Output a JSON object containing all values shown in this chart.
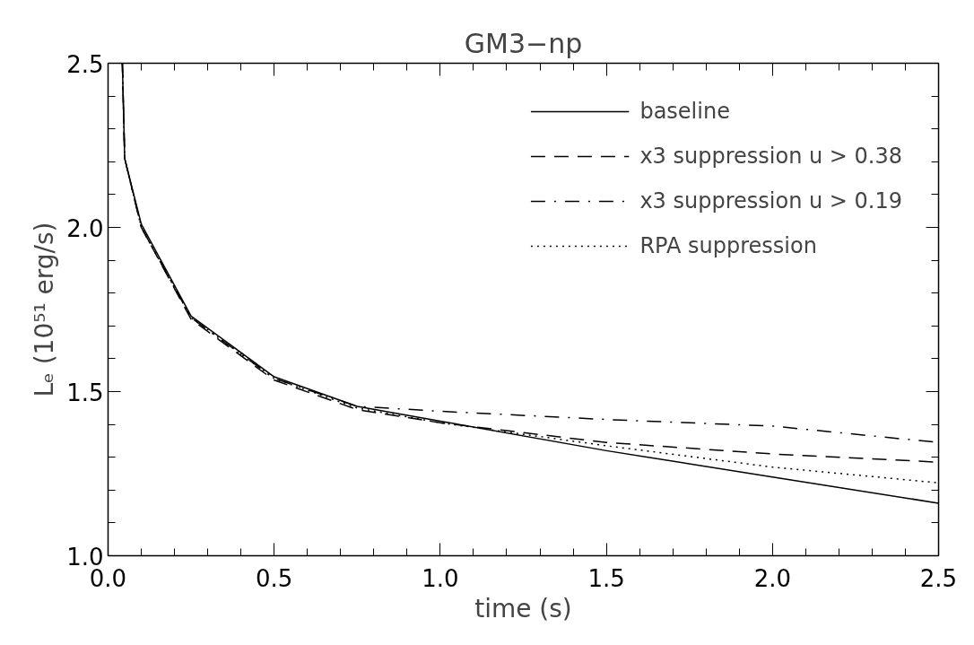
{
  "chart_data": {
    "type": "line",
    "title": "GM3−np",
    "xlabel": "time (s)",
    "ylabel": "Lₑ (10⁵¹ erg/s)",
    "xlim": [
      0,
      2.5
    ],
    "ylim": [
      1.0,
      2.5
    ],
    "xticks": [
      {
        "value": 0,
        "label": "0.0"
      },
      {
        "value": 0.1,
        "label": null
      },
      {
        "value": 0.2,
        "label": null
      },
      {
        "value": 0.3,
        "label": null
      },
      {
        "value": 0.4,
        "label": null
      },
      {
        "value": 0.5,
        "label": "0.5"
      },
      {
        "value": 0.6,
        "label": null
      },
      {
        "value": 0.7,
        "label": null
      },
      {
        "value": 0.8,
        "label": null
      },
      {
        "value": 0.9,
        "label": null
      },
      {
        "value": 1.0,
        "label": "1.0"
      },
      {
        "value": 1.1,
        "label": null
      },
      {
        "value": 1.2,
        "label": null
      },
      {
        "value": 1.3,
        "label": null
      },
      {
        "value": 1.4,
        "label": null
      },
      {
        "value": 1.5,
        "label": "1.5"
      },
      {
        "value": 1.6,
        "label": null
      },
      {
        "value": 1.7,
        "label": null
      },
      {
        "value": 1.8,
        "label": null
      },
      {
        "value": 1.9,
        "label": null
      },
      {
        "value": 2.0,
        "label": "2.0"
      },
      {
        "value": 2.1,
        "label": null
      },
      {
        "value": 2.2,
        "label": null
      },
      {
        "value": 2.3,
        "label": null
      },
      {
        "value": 2.4,
        "label": null
      },
      {
        "value": 2.5,
        "label": "2.5"
      }
    ],
    "yticks": [
      {
        "value": 1.0,
        "label": "1.0"
      },
      {
        "value": 1.1,
        "label": null
      },
      {
        "value": 1.2,
        "label": null
      },
      {
        "value": 1.3,
        "label": null
      },
      {
        "value": 1.4,
        "label": null
      },
      {
        "value": 1.5,
        "label": "1.5"
      },
      {
        "value": 1.6,
        "label": null
      },
      {
        "value": 1.7,
        "label": null
      },
      {
        "value": 1.8,
        "label": null
      },
      {
        "value": 1.9,
        "label": null
      },
      {
        "value": 2.0,
        "label": "2.0"
      },
      {
        "value": 2.1,
        "label": null
      },
      {
        "value": 2.2,
        "label": null
      },
      {
        "value": 2.3,
        "label": null
      },
      {
        "value": 2.4,
        "label": null
      },
      {
        "value": 2.5,
        "label": "2.5"
      }
    ],
    "grid": false,
    "legend": "top right",
    "marker": "none",
    "series": [
      {
        "name": "baseline",
        "color": "#000000",
        "line_style": "solid",
        "x": [
          0.043,
          0.05,
          0.1,
          0.25,
          0.5,
          0.75,
          1.0,
          1.5,
          2.0,
          2.5
        ],
        "values": [
          2.5,
          2.21,
          2.01,
          1.73,
          1.545,
          1.455,
          1.41,
          1.32,
          1.24,
          1.16
        ]
      },
      {
        "name": "x3 suppression u > 0.38",
        "color": "#000000",
        "line_style": "dashed",
        "x": [
          0.043,
          0.05,
          0.1,
          0.25,
          0.5,
          0.75,
          1.0,
          1.5,
          2.0,
          2.5
        ],
        "values": [
          2.5,
          2.21,
          2.0,
          1.72,
          1.535,
          1.445,
          1.405,
          1.345,
          1.31,
          1.285
        ]
      },
      {
        "name": "x3 suppression u > 0.19",
        "color": "#000000",
        "line_style": "dashdot",
        "x": [
          0.043,
          0.05,
          0.1,
          0.25,
          0.5,
          0.75,
          1.0,
          1.5,
          2.0,
          2.5
        ],
        "values": [
          2.5,
          2.21,
          2.0,
          1.725,
          1.54,
          1.455,
          1.44,
          1.415,
          1.395,
          1.345
        ]
      },
      {
        "name": "RPA suppression",
        "color": "#000000",
        "line_style": "dotted",
        "x": [
          0.043,
          0.05,
          0.1,
          0.25,
          0.5,
          0.75,
          1.0,
          1.5,
          2.0,
          2.5
        ],
        "values": [
          2.5,
          2.21,
          2.0,
          1.725,
          1.54,
          1.45,
          1.405,
          1.335,
          1.27,
          1.222
        ]
      }
    ]
  }
}
